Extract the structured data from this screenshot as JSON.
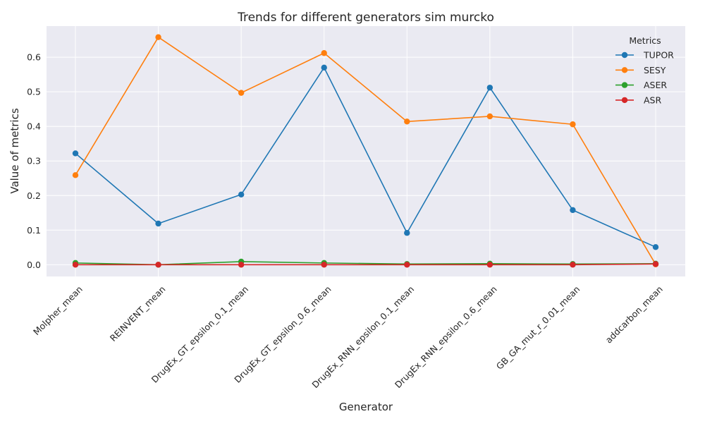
{
  "chart_data": {
    "type": "line",
    "title": "Trends for different generators sim murcko",
    "xlabel": "Generator",
    "ylabel": "Value of metrics",
    "categories": [
      "Molpher_mean",
      "REINVENT_mean",
      "DrugEx_GT_epsilon_0.1_mean",
      "DrugEx_GT_epsilon_0.6_mean",
      "DrugEx_RNN_epsilon_0.1_mean",
      "DrugEx_RNN_epsilon_0.6_mean",
      "GB_GA_mut_r_0.01_mean",
      "addcarbon_mean"
    ],
    "ylim": [
      -0.034,
      0.69
    ],
    "yticks": [
      "0.0",
      "0.1",
      "0.2",
      "0.3",
      "0.4",
      "0.5",
      "0.6"
    ],
    "grid": true,
    "legend": {
      "title": "Metrics",
      "placement": "top-right"
    },
    "series": [
      {
        "name": "TUPOR",
        "color": "#1f77b4",
        "values": [
          0.322,
          0.119,
          0.203,
          0.57,
          0.092,
          0.512,
          0.158,
          0.051
        ]
      },
      {
        "name": "SESY",
        "color": "#ff7f0e",
        "values": [
          0.259,
          0.658,
          0.497,
          0.612,
          0.414,
          0.429,
          0.406,
          0.001
        ]
      },
      {
        "name": "ASER",
        "color": "#2ca02c",
        "values": [
          0.005,
          0.0,
          0.009,
          0.005,
          0.002,
          0.003,
          0.002,
          0.003
        ]
      },
      {
        "name": "ASR",
        "color": "#d62728",
        "values": [
          0.0,
          0.0,
          0.0,
          0.0,
          0.0,
          0.0,
          0.0,
          0.002
        ]
      }
    ]
  }
}
